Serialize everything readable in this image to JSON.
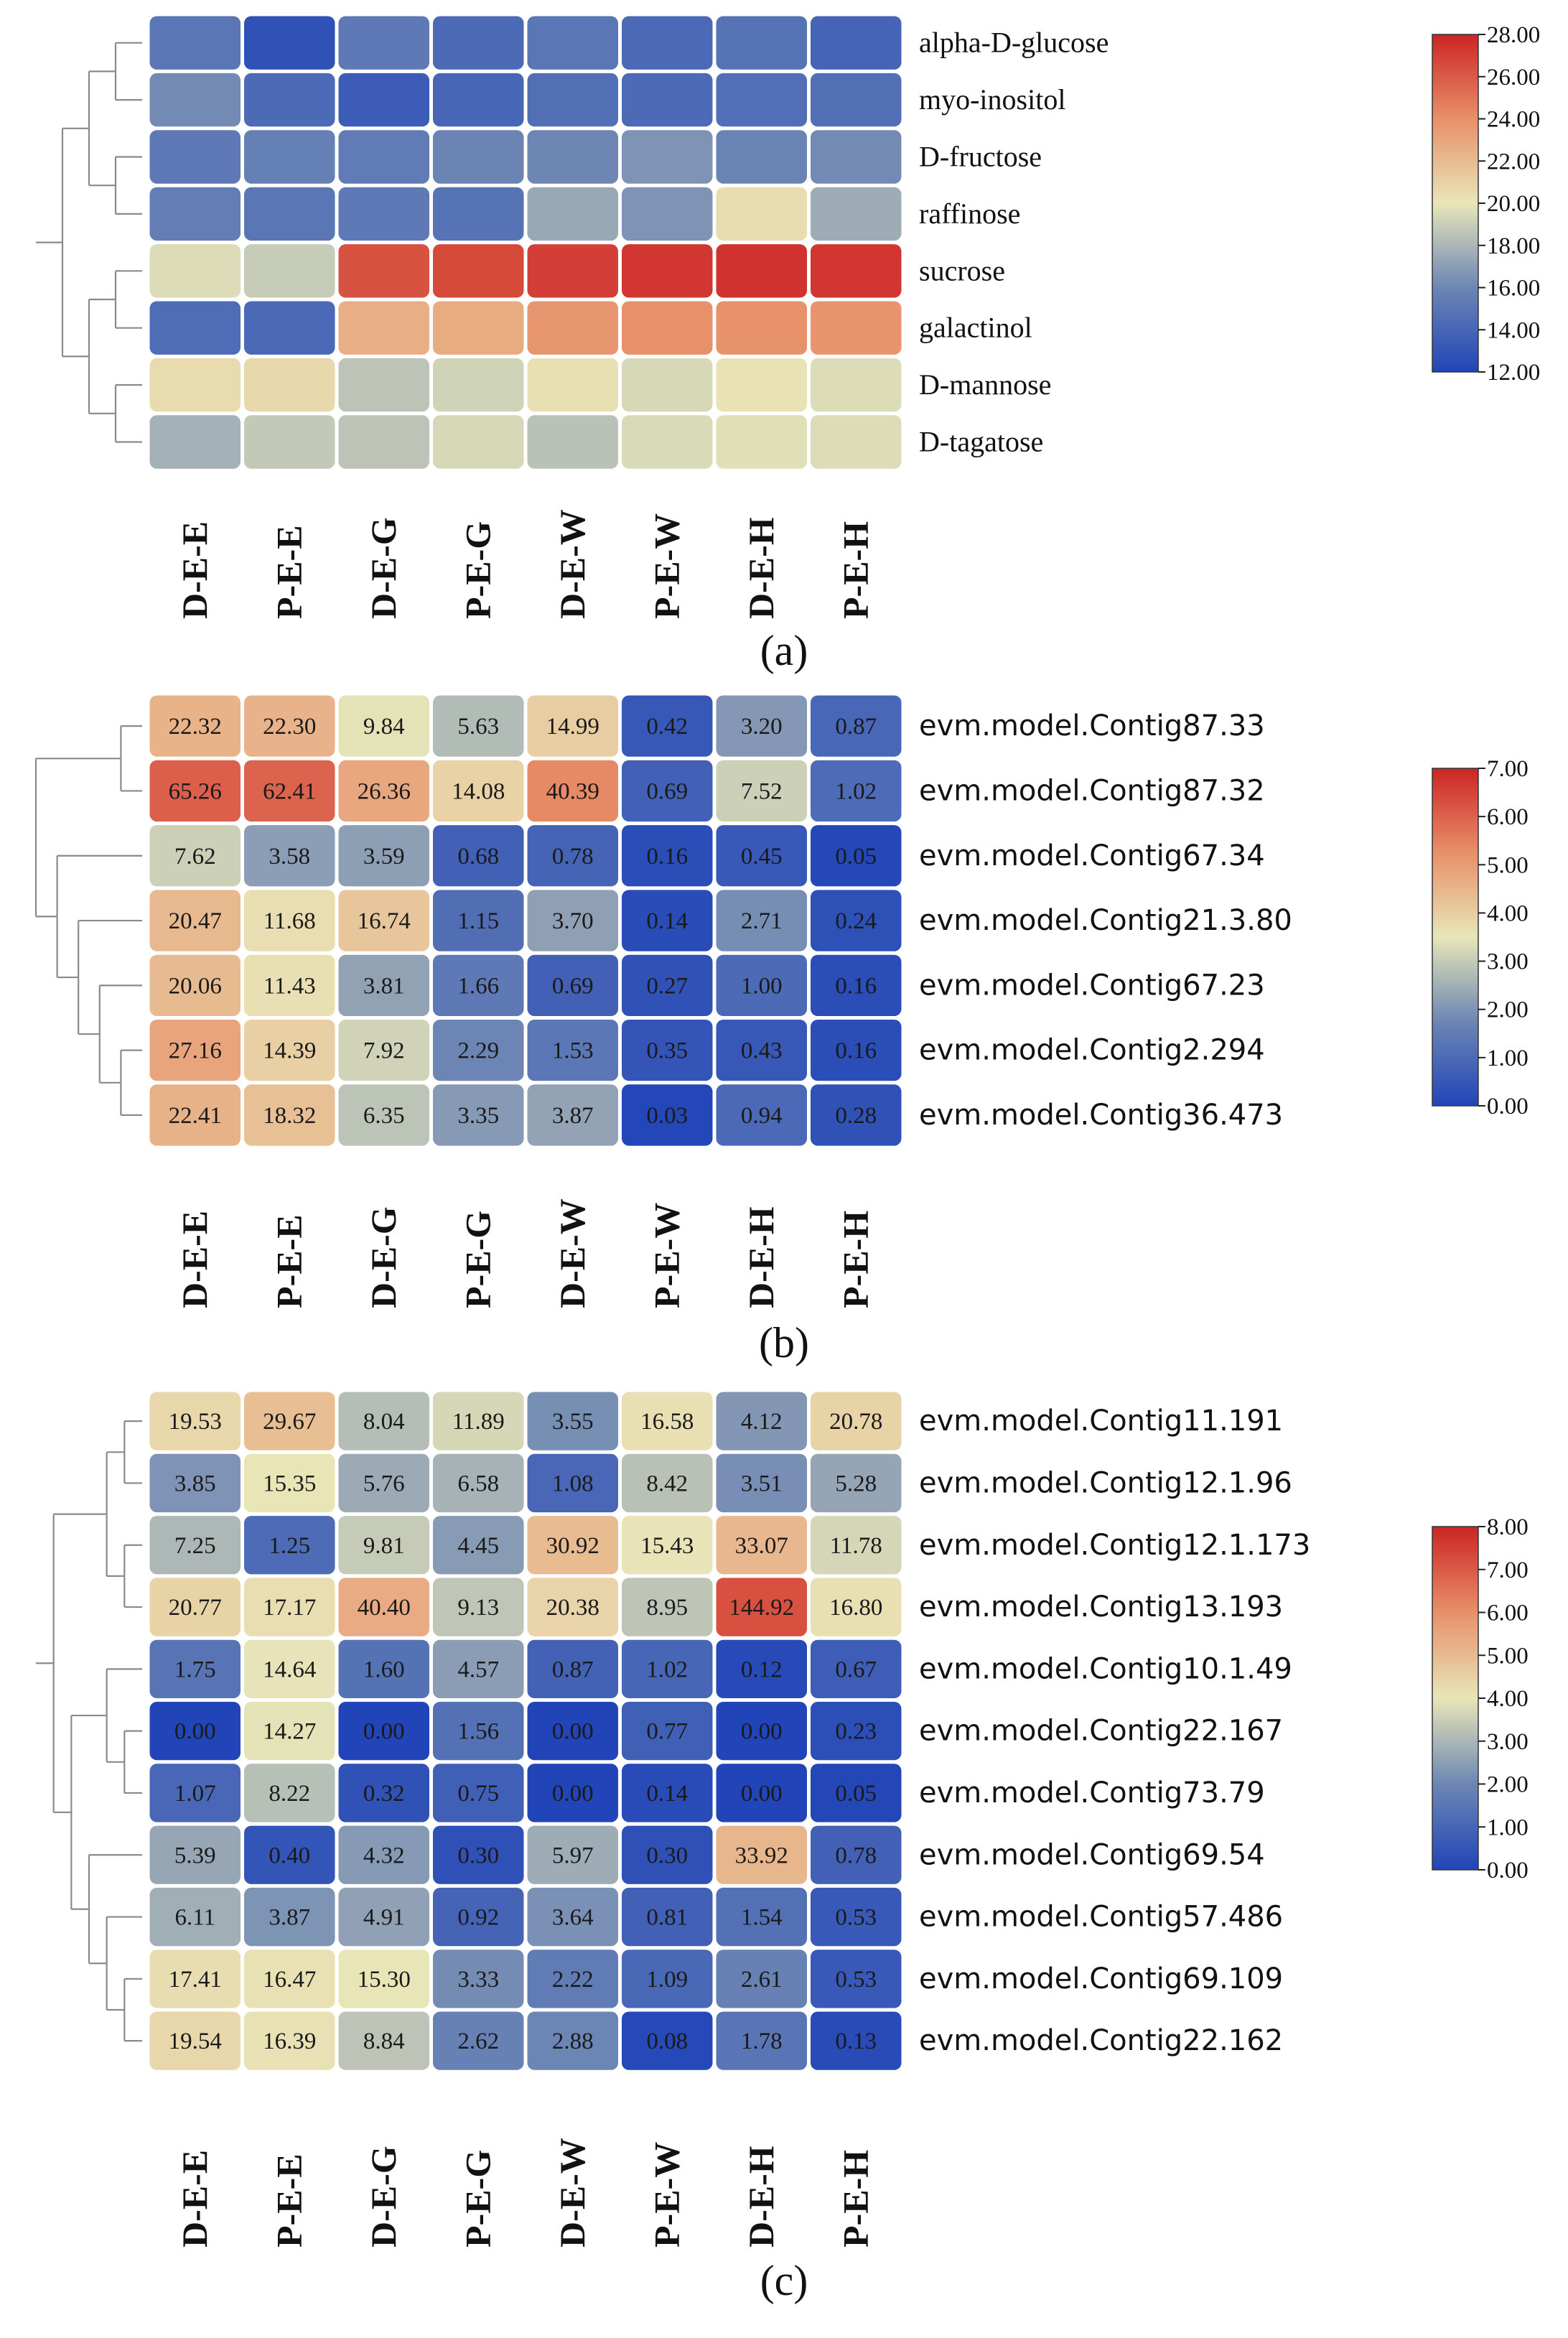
{
  "chart_data": [
    {
      "type": "heatmap",
      "panel_label": "(a)",
      "columns": [
        "D-E-E",
        "P-E-E",
        "D-E-G",
        "P-E-G",
        "D-E-W",
        "P-E-W",
        "D-E-H",
        "P-E-H"
      ],
      "rows": [
        "alpha-D-glucose",
        "myo-inositol",
        "D-fructose",
        "raffinose",
        "sucrose",
        "galactinol",
        "D-mannose",
        "D-tagatose"
      ],
      "show_values": false,
      "values": [
        [
          15.0,
          12.8,
          15.2,
          14.3,
          15.0,
          14.2,
          14.8,
          13.9
        ],
        [
          16.2,
          14.3,
          13.4,
          14.0,
          14.6,
          14.3,
          14.5,
          14.6
        ],
        [
          15.2,
          15.6,
          15.3,
          15.9,
          16.0,
          16.6,
          15.8,
          16.2
        ],
        [
          15.5,
          15.0,
          15.2,
          14.8,
          17.4,
          16.6,
          20.4,
          17.6
        ],
        [
          19.6,
          18.9,
          26.3,
          26.6,
          27.0,
          27.3,
          27.5,
          27.3
        ],
        [
          14.4,
          14.2,
          22.6,
          22.7,
          23.7,
          24.0,
          23.9,
          23.8
        ],
        [
          20.5,
          20.6,
          18.6,
          19.2,
          20.3,
          19.4,
          20.2,
          19.6
        ],
        [
          17.8,
          18.8,
          18.6,
          19.4,
          18.5,
          19.5,
          19.7,
          19.6
        ]
      ],
      "colorbar": {
        "min": 12,
        "max": 28,
        "ticks": [
          "28.00",
          "26.00",
          "24.00",
          "22.00",
          "20.00",
          "18.00",
          "16.00",
          "14.00",
          "12.00"
        ]
      },
      "dendrogram": "((((alpha-D-glucose,myo-inositol),(D-fructose,raffinose)),((sucrose,galactinol),(D-mannose,D-tagatose))))"
    },
    {
      "type": "heatmap",
      "panel_label": "(b)",
      "columns": [
        "D-E-E",
        "P-E-E",
        "D-E-G",
        "P-E-G",
        "D-E-W",
        "P-E-W",
        "D-E-H",
        "P-E-H"
      ],
      "rows": [
        "evm.model.Contig87.33",
        "evm.model.Contig87.32",
        "evm.model.Contig67.34",
        "evm.model.Contig21.3.80",
        "evm.model.Contig67.23",
        "evm.model.Contig2.294",
        "evm.model.Contig36.473"
      ],
      "show_values": true,
      "value_labels": [
        [
          "22.32",
          "22.30",
          "9.84",
          "5.63",
          "14.99",
          "0.42",
          "3.20",
          "0.87"
        ],
        [
          "65.26",
          "62.41",
          "26.36",
          "14.08",
          "40.39",
          "0.69",
          "7.52",
          "1.02"
        ],
        [
          "7.62",
          "3.58",
          "3.59",
          "0.68",
          "0.78",
          "0.16",
          "0.45",
          "0.05"
        ],
        [
          "20.47",
          "11.68",
          "16.74",
          "1.15",
          "3.70",
          "0.14",
          "2.71",
          "0.24"
        ],
        [
          "20.06",
          "11.43",
          "3.81",
          "1.66",
          "0.69",
          "0.27",
          "1.00",
          "0.16"
        ],
        [
          "27.16",
          "14.39",
          "7.92",
          "2.29",
          "1.53",
          "0.35",
          "0.43",
          "0.16"
        ],
        [
          "22.41",
          "18.32",
          "6.35",
          "3.35",
          "3.87",
          "0.03",
          "0.94",
          "0.28"
        ]
      ],
      "colorbar": {
        "min": 0,
        "max": 7,
        "ticks": [
          "7.00",
          "6.00",
          "5.00",
          "4.00",
          "3.00",
          "2.00",
          "1.00",
          "0.00"
        ]
      },
      "dendrogram": "((evm.model.Contig87.33,evm.model.Contig87.32),(evm.model.Contig67.34,(evm.model.Contig21.3.80,(evm.model.Contig67.23,(evm.model.Contig2.294,evm.model.Contig36.473)))))"
    },
    {
      "type": "heatmap",
      "panel_label": "(c)",
      "columns": [
        "D-E-E",
        "P-E-E",
        "D-E-G",
        "P-E-G",
        "D-E-W",
        "P-E-W",
        "D-E-H",
        "P-E-H"
      ],
      "rows": [
        "evm.model.Contig11.191",
        "evm.model.Contig12.1.96",
        "evm.model.Contig12.1.173",
        "evm.model.Contig13.193",
        "evm.model.Contig10.1.49",
        "evm.model.Contig22.167",
        "evm.model.Contig73.79",
        "evm.model.Contig69.54",
        "evm.model.Contig57.486",
        "evm.model.Contig69.109",
        "evm.model.Contig22.162"
      ],
      "show_values": true,
      "value_labels": [
        [
          "19.53",
          "29.67",
          "8.04",
          "11.89",
          "3.55",
          "16.58",
          "4.12",
          "20.78"
        ],
        [
          "3.85",
          "15.35",
          "5.76",
          "6.58",
          "1.08",
          "8.42",
          "3.51",
          "5.28"
        ],
        [
          "7.25",
          "1.25",
          "9.81",
          "4.45",
          "30.92",
          "15.43",
          "33.07",
          "11.78"
        ],
        [
          "20.77",
          "17.17",
          "40.40",
          "9.13",
          "20.38",
          "8.95",
          "144.92",
          "16.80"
        ],
        [
          "1.75",
          "14.64",
          "1.60",
          "4.57",
          "0.87",
          "1.02",
          "0.12",
          "0.67"
        ],
        [
          "0.00",
          "14.27",
          "0.00",
          "1.56",
          "0.00",
          "0.77",
          "0.00",
          "0.23"
        ],
        [
          "1.07",
          "8.22",
          "0.32",
          "0.75",
          "0.00",
          "0.14",
          "0.00",
          "0.05"
        ],
        [
          "5.39",
          "0.40",
          "4.32",
          "0.30",
          "5.97",
          "0.30",
          "33.92",
          "0.78"
        ],
        [
          "6.11",
          "3.87",
          "4.91",
          "0.92",
          "3.64",
          "0.81",
          "1.54",
          "0.53"
        ],
        [
          "17.41",
          "16.47",
          "15.30",
          "3.33",
          "2.22",
          "1.09",
          "2.61",
          "0.53"
        ],
        [
          "19.54",
          "16.39",
          "8.84",
          "2.62",
          "2.88",
          "0.08",
          "1.78",
          "0.13"
        ]
      ],
      "colorbar": {
        "min": 0,
        "max": 8,
        "ticks": [
          "8.00",
          "7.00",
          "6.00",
          "5.00",
          "4.00",
          "3.00",
          "2.00",
          "1.00",
          "0.00"
        ]
      },
      "dendrogram": "((((evm.model.Contig11.191,evm.model.Contig12.1.96),(evm.model.Contig12.1.173,evm.model.Contig13.193)),((evm.model.Contig10.1.49,(evm.model.Contig22.167,evm.model.Contig73.79)),(evm.model.Contig69.54,(evm.model.Contig57.486,(evm.model.Contig69.109,evm.model.Contig22.162))))))"
    }
  ]
}
